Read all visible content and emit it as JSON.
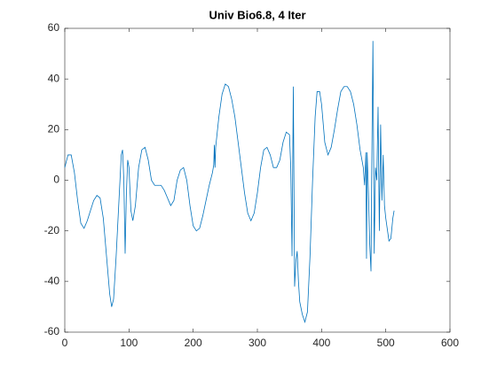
{
  "chart_data": {
    "type": "line",
    "title": "Univ Bio6.8, 4 Iter",
    "x": [
      0,
      5,
      10,
      15,
      20,
      25,
      30,
      35,
      40,
      45,
      50,
      55,
      60,
      65,
      70,
      73,
      76,
      80,
      85,
      88,
      90,
      92,
      94,
      96,
      98,
      100,
      103,
      106,
      110,
      115,
      120,
      125,
      130,
      135,
      140,
      145,
      150,
      155,
      160,
      165,
      170,
      175,
      180,
      185,
      190,
      195,
      200,
      205,
      210,
      215,
      220,
      225,
      230,
      232,
      233,
      234,
      235,
      240,
      245,
      250,
      255,
      260,
      265,
      270,
      275,
      280,
      285,
      290,
      295,
      300,
      305,
      310,
      315,
      320,
      325,
      330,
      335,
      340,
      345,
      350,
      352,
      354,
      356,
      358,
      360,
      362,
      364,
      366,
      370,
      374,
      378,
      382,
      386,
      390,
      393,
      397,
      400,
      405,
      410,
      415,
      420,
      425,
      430,
      435,
      440,
      445,
      450,
      455,
      460,
      465,
      467,
      469,
      470,
      471,
      473,
      475,
      477,
      478,
      480,
      482,
      484,
      486,
      488,
      490,
      492,
      494,
      496,
      498,
      500,
      505,
      508,
      511,
      513
    ],
    "values": [
      5,
      10,
      10,
      3,
      -8,
      -17,
      -19,
      -16,
      -12,
      -8,
      -6,
      -7,
      -15,
      -30,
      -45,
      -50,
      -47,
      -30,
      -5,
      10,
      12,
      0,
      -29,
      -5,
      8,
      5,
      -12,
      -16,
      -10,
      5,
      12,
      13,
      8,
      0,
      -2,
      -2,
      -2,
      -4,
      -7,
      -10,
      -8,
      0,
      4,
      5,
      0,
      -10,
      -18,
      -20,
      -19,
      -14,
      -8,
      -2,
      3,
      6,
      14,
      5,
      13,
      25,
      34,
      38,
      37,
      32,
      25,
      15,
      5,
      -5,
      -13,
      -16,
      -13,
      -5,
      5,
      12,
      13,
      10,
      5,
      5,
      8,
      15,
      19,
      18,
      5,
      -30,
      37,
      -42,
      -32,
      -28,
      -40,
      -48,
      -53,
      -56,
      -52,
      -30,
      0,
      25,
      35,
      35,
      30,
      15,
      10,
      13,
      20,
      28,
      35,
      37,
      37,
      35,
      30,
      22,
      12,
      5,
      -2,
      11,
      -31,
      11,
      -5,
      -25,
      -36,
      0,
      55,
      -29,
      5,
      0,
      29,
      -20,
      22,
      -8,
      10,
      -10,
      -15,
      -24,
      -23,
      -15,
      -12
    ],
    "color": "#0072bd",
    "xlim": [
      0,
      600
    ],
    "xticks": [
      0,
      100,
      200,
      300,
      400,
      500,
      600
    ],
    "ylim": [
      -60,
      60
    ],
    "yticks": [
      -60,
      -40,
      -20,
      0,
      20,
      40,
      60
    ]
  }
}
